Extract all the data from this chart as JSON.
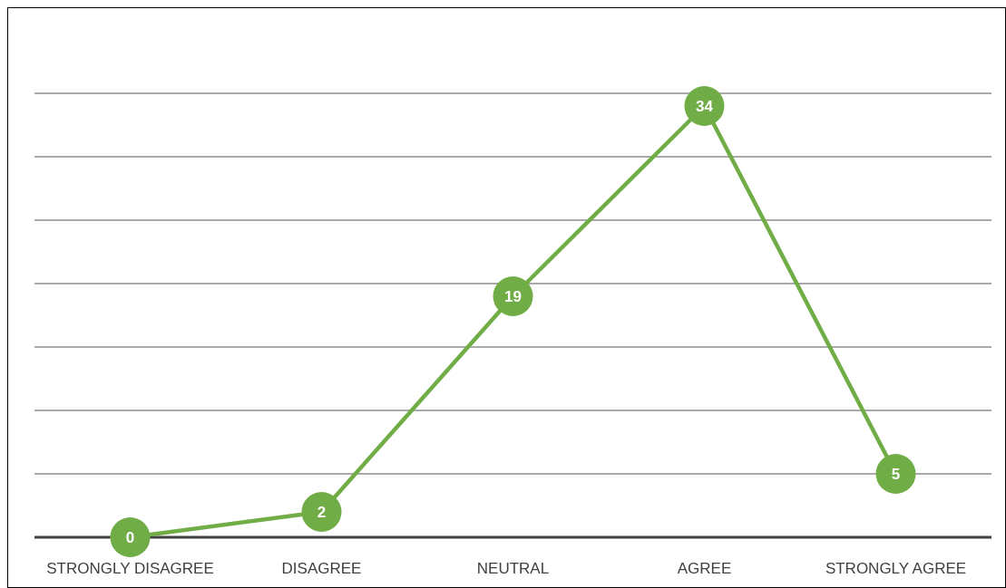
{
  "chart_data": {
    "type": "line",
    "categories": [
      "STRONGLY DISAGREE",
      "DISAGREE",
      "NEUTRAL",
      "AGREE",
      "STRONGLY AGREE"
    ],
    "series": [
      {
        "color": "#70ad47",
        "values": [
          0,
          2,
          19,
          34,
          5
        ]
      }
    ],
    "ylim": [
      0,
      35
    ],
    "yticks": [
      {
        "value": 0,
        "label": null
      },
      {
        "value": 5,
        "label": null
      },
      {
        "value": 10,
        "label": null
      },
      {
        "value": 15,
        "label": null
      },
      {
        "value": 20,
        "label": null
      },
      {
        "value": 25,
        "label": null
      },
      {
        "value": 30,
        "label": null
      },
      {
        "value": 35,
        "label": null
      }
    ],
    "tick_labels": "x",
    "grid": "y",
    "marker": "circle",
    "line_style": "solid",
    "data_labels": true
  }
}
